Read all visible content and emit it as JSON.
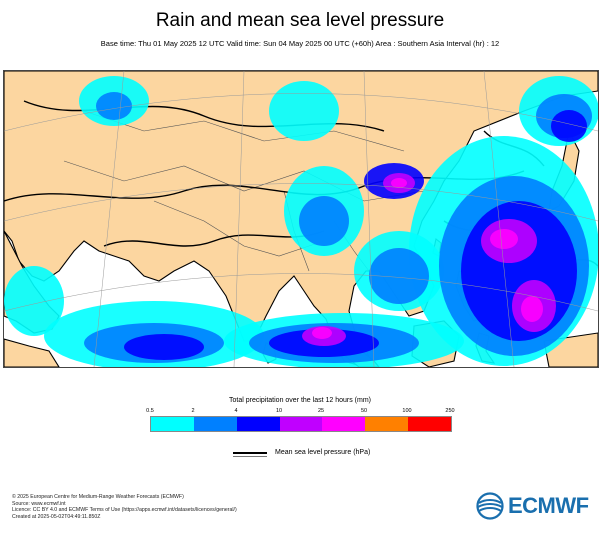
{
  "header": {
    "title": "Rain and mean sea level pressure",
    "subtitle": "Base time: Thu 01 May 2025 12 UTC Valid time: Sun 04 May 2025 00 UTC (+60h) Area : Southern Asia Interval (hr) : 12"
  },
  "legend": {
    "title": "Total precipitation over the last 12 hours (mm)",
    "ticks": [
      "0.5",
      "2",
      "4",
      "10",
      "25",
      "50",
      "100",
      "250"
    ],
    "colors": [
      "#00ffff",
      "#0080ff",
      "#0000ff",
      "#c000ff",
      "#ff00ff",
      "#ff8000",
      "#ff0000"
    ],
    "mslp_label": "Mean sea level pressure (hPa)"
  },
  "colors": {
    "land": "#fcd6a0",
    "ocean": "#ffffff",
    "coast": "#000000",
    "logo": "#1a6fae"
  },
  "footer": {
    "line1": "© 2025 European Centre for Medium-Range Weather Forecasts (ECMWF)",
    "line2": "Source: www.ecmwf.int",
    "line3": "Licence: CC BY 4.0 and ECMWF Terms of Use (https://apps.ecmwf.int/datasets/licences/general/)",
    "line4": "Created at 2025-05-02T04:49:11.850Z"
  },
  "logo": {
    "text": "ECMWF",
    "icon": "ecmwf-globe-icon"
  }
}
